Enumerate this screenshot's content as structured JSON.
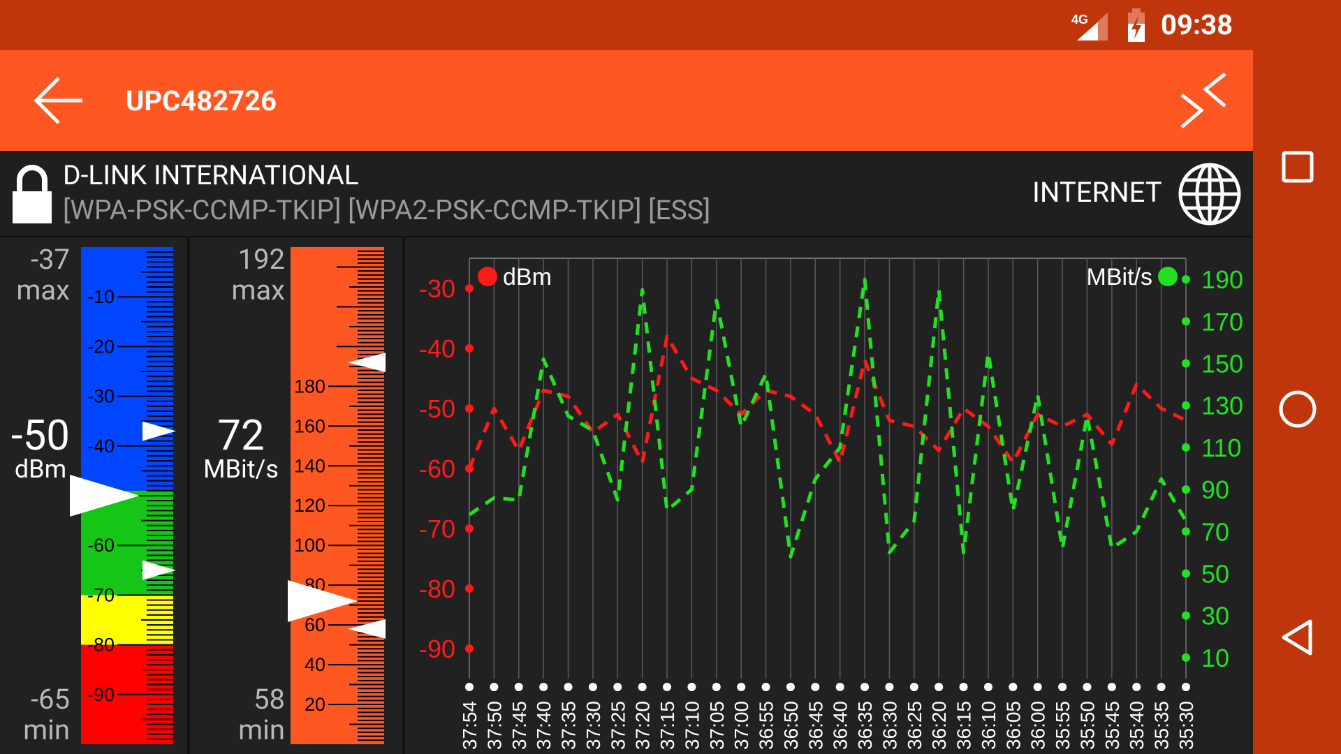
{
  "status_bar": {
    "network": "4G",
    "time": "09:38",
    "icons": [
      "signal-icon",
      "battery-charging-icon"
    ]
  },
  "app_bar": {
    "title": "UPC482726",
    "back_icon": "arrow-left-icon",
    "action_icon": "compress-arrows-icon"
  },
  "network_info": {
    "vendor": "D-LINK INTERNATIONAL",
    "capabilities": "[WPA-PSK-CCMP-TKIP]  [WPA2-PSK-CCMP-TKIP]  [ESS]",
    "lock_icon": "lock-icon",
    "internet_label": "INTERNET",
    "globe_icon": "globe-icon"
  },
  "signal_gauge": {
    "max_value": "-37",
    "max_label": "max",
    "min_value": "-65",
    "min_label": "min",
    "current_value": "-50",
    "unit": "dBm",
    "scale_labels": [
      "-10",
      "-20",
      "-30",
      "-40",
      "-50",
      "-60",
      "-70",
      "-80",
      "-90"
    ],
    "current": -50,
    "max": -37,
    "min": -65,
    "colors": {
      "blue": "#0046ff",
      "green": "#16c616",
      "yellow": "#ffff00",
      "red": "#ff0000"
    }
  },
  "speed_gauge": {
    "max_value": "192",
    "max_label": "max",
    "min_value": "58",
    "min_label": "min",
    "current_value": "72",
    "unit": "MBit/s",
    "scale_labels": [
      "20",
      "40",
      "60",
      "80",
      "100",
      "120",
      "140",
      "160",
      "180"
    ],
    "current": 72,
    "max": 192,
    "min": 58,
    "color": "#ff5722"
  },
  "chart_data": {
    "type": "line",
    "legend_left": "dBm",
    "legend_right": "MBit/s",
    "y_left_ticks": [
      "-30",
      "-40",
      "-50",
      "-60",
      "-70",
      "-80",
      "-90"
    ],
    "y_right_ticks": [
      "190",
      "170",
      "150",
      "130",
      "110",
      "90",
      "70",
      "50",
      "30",
      "10"
    ],
    "x_labels": [
      "37:54",
      "37:50",
      "37:45",
      "37:40",
      "37:35",
      "37:30",
      "37:25",
      "37:20",
      "37:15",
      "37:10",
      "37:05",
      "37:00",
      "36:55",
      "36:50",
      "36:45",
      "36:40",
      "36:35",
      "36:30",
      "36:25",
      "36:20",
      "36:15",
      "36:10",
      "36:05",
      "36:00",
      "35:55",
      "35:50",
      "35:45",
      "35:40",
      "35:35",
      "35:30"
    ],
    "series": [
      {
        "name": "dBm",
        "color": "#ff1a1a",
        "axis": "left",
        "ylim": [
          -95,
          -25
        ],
        "values": [
          -60,
          -50,
          -57,
          -47,
          -48,
          -54,
          -51,
          -59,
          -38,
          -45,
          -47,
          -51,
          -47,
          -48,
          -51,
          -59,
          -42,
          -52,
          -53,
          -57,
          -50,
          -53,
          -59,
          -51,
          -53,
          -51,
          -56,
          -46,
          -50,
          -52
        ]
      },
      {
        "name": "MBit/s",
        "color": "#22e022",
        "axis": "right",
        "ylim": [
          0,
          200
        ],
        "values": [
          78,
          86,
          85,
          152,
          125,
          118,
          85,
          185,
          80,
          90,
          180,
          120,
          145,
          58,
          95,
          110,
          190,
          60,
          75,
          185,
          60,
          155,
          80,
          135,
          62,
          125,
          62,
          70,
          95,
          75
        ]
      }
    ]
  }
}
